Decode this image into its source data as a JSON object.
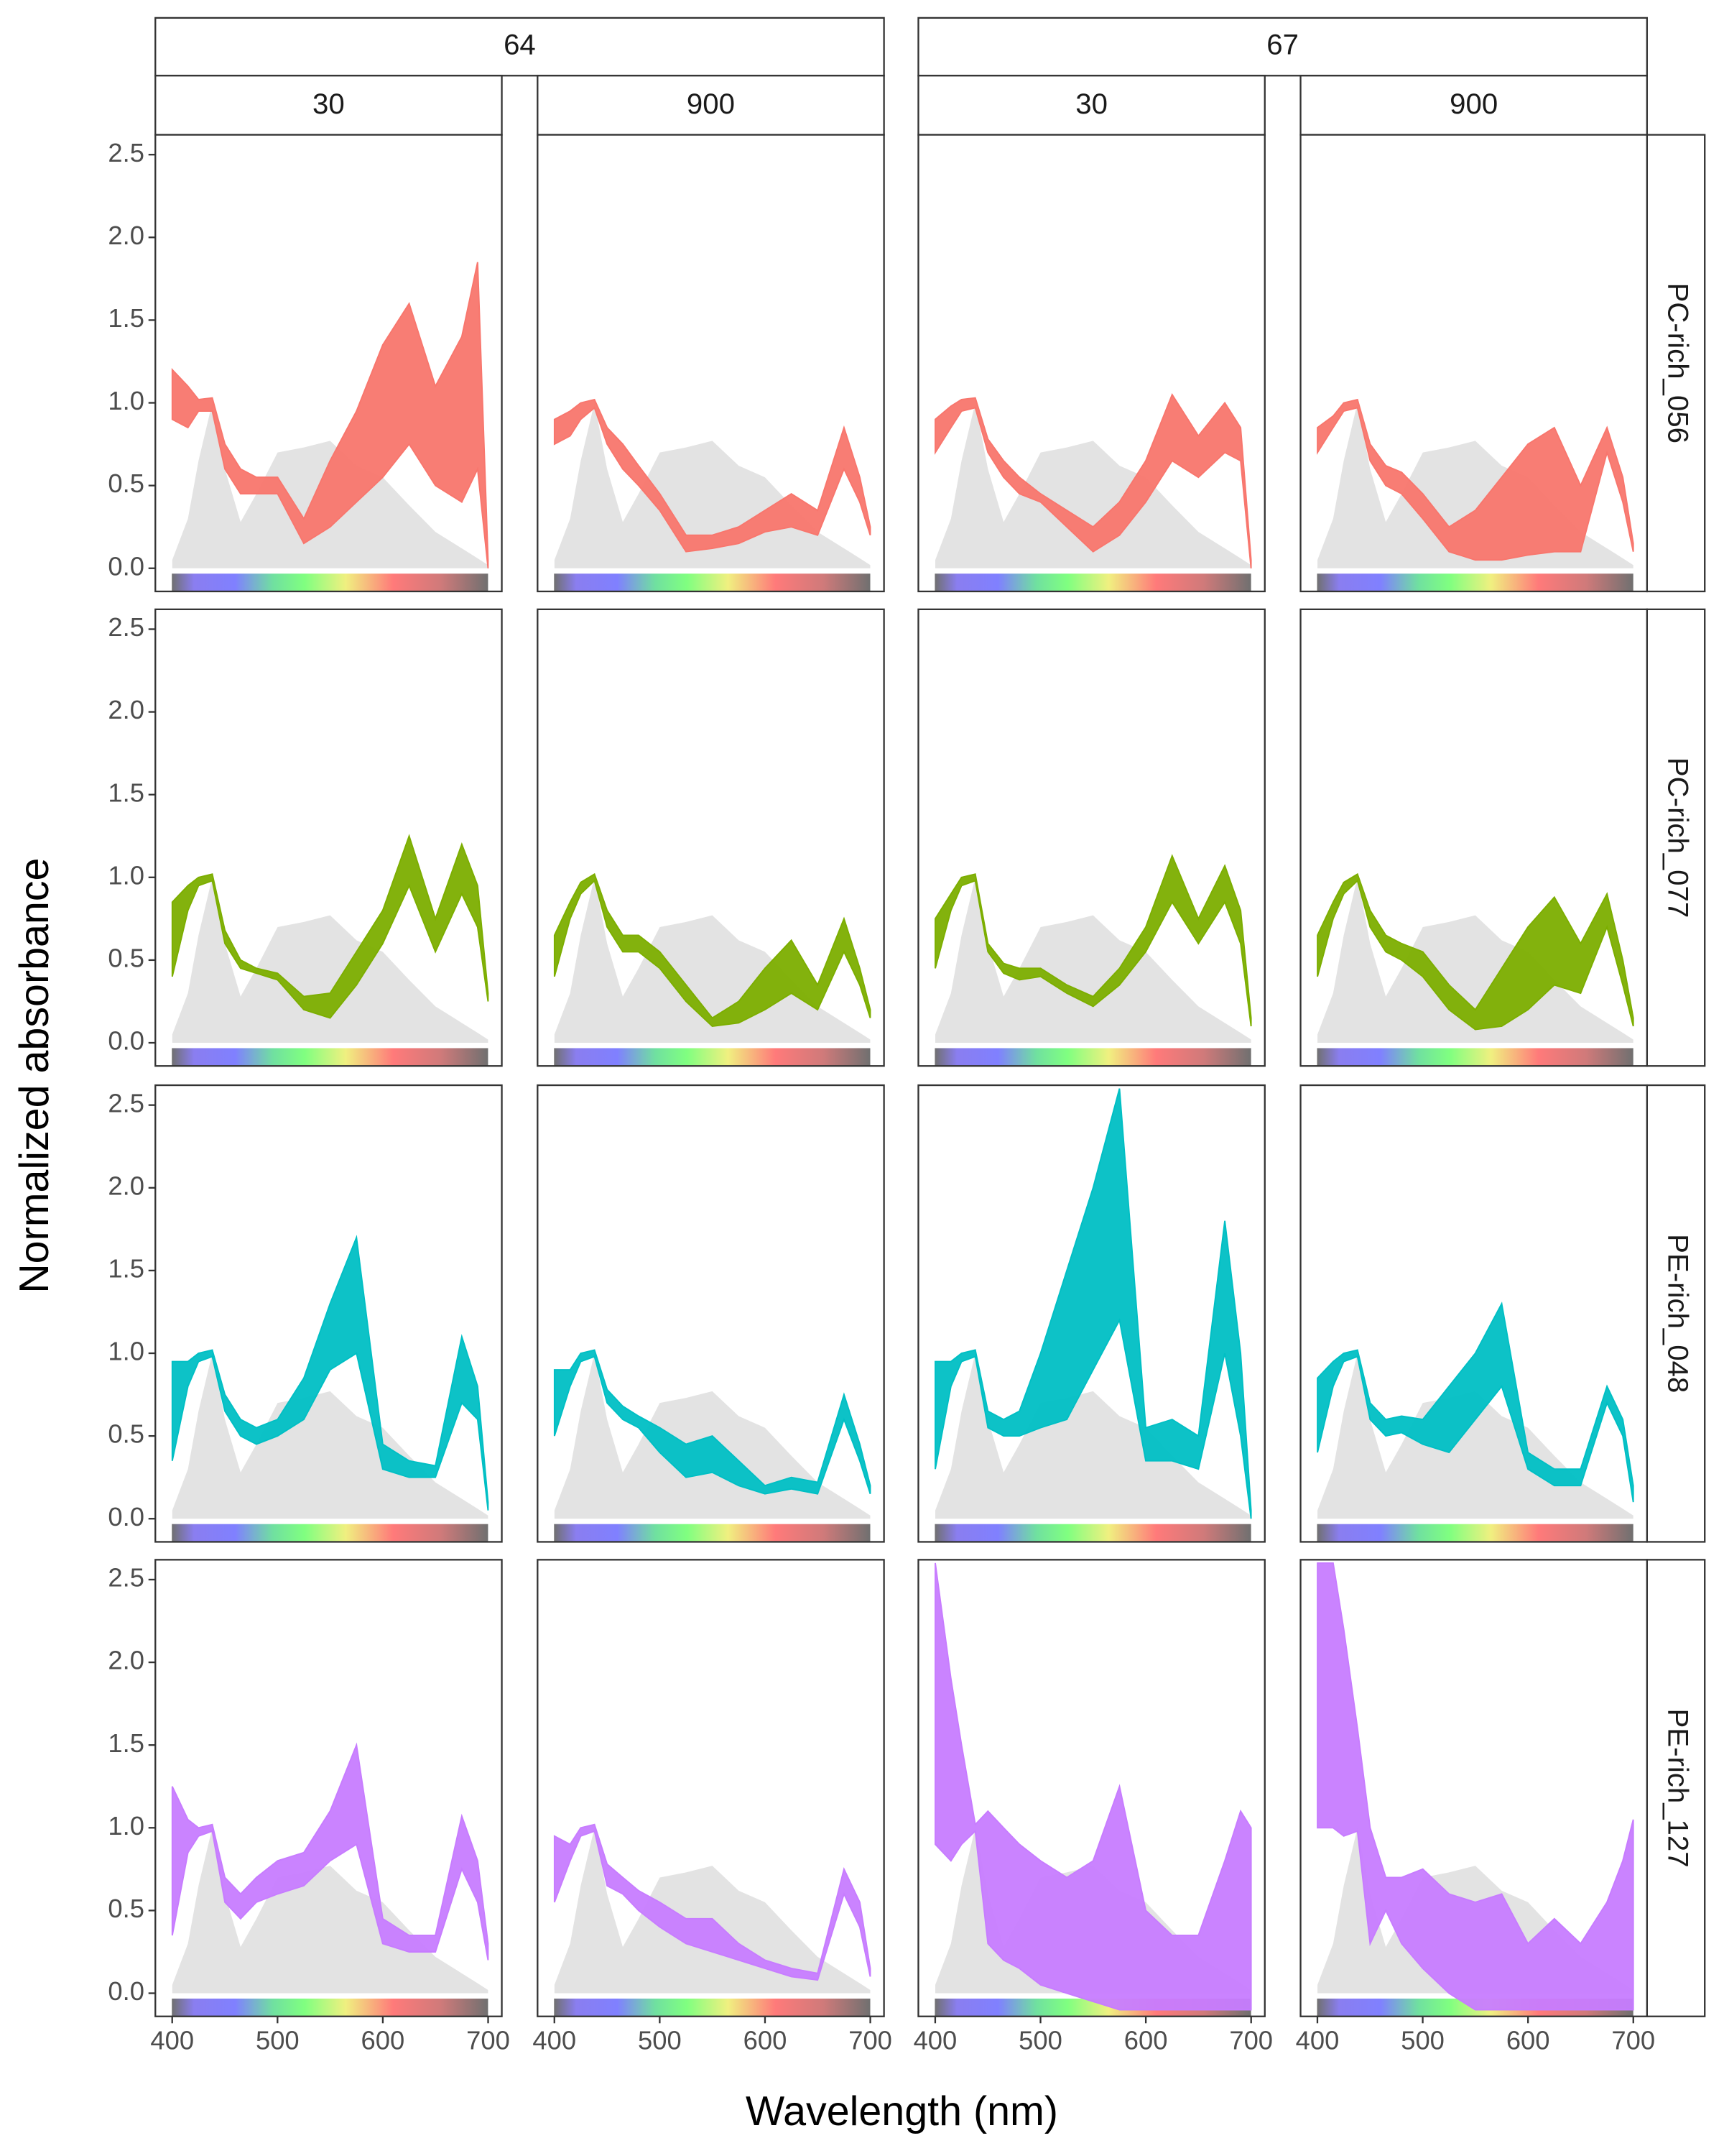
{
  "chart_data": {
    "type": "ribbon",
    "x_label": "Wavelength (nm)",
    "y_label": "Normalized absorbance",
    "xlim": [
      384,
      713
    ],
    "xticks": [
      400,
      500,
      600,
      700
    ],
    "ylim": [
      -0.14,
      2.62
    ],
    "yticks": [
      {
        "value": 0,
        "label": "0.0"
      },
      {
        "value": 0.5,
        "label": "0.5"
      },
      {
        "value": 1,
        "label": "1.0"
      },
      {
        "value": 1.5,
        "label": "1.5"
      },
      {
        "value": 2,
        "label": "2.0"
      },
      2.5
    ],
    "x": [
      400,
      415,
      425,
      438,
      450,
      465,
      480,
      500,
      525,
      550,
      575,
      600,
      625,
      650,
      675,
      690,
      700
    ],
    "reference": {
      "color": "#e3e3e3",
      "values": [
        0.05,
        0.3,
        0.65,
        1.0,
        0.6,
        0.28,
        0.45,
        0.7,
        0.73,
        0.77,
        0.62,
        0.55,
        0.38,
        0.22,
        0.12,
        0.06,
        0.02
      ]
    },
    "column_groups": [
      {
        "label": "64",
        "columns": [
          "30",
          "900"
        ]
      },
      {
        "label": "67",
        "columns": [
          "30",
          "900"
        ]
      }
    ],
    "rows": [
      {
        "label": "PC-rich_056",
        "color": "#f8766d",
        "panels": [
          {
            "lower": [
              0.9,
              0.85,
              0.95,
              0.95,
              0.6,
              0.45,
              0.45,
              0.45,
              0.15,
              0.25,
              0.4,
              0.55,
              0.75,
              0.5,
              0.4,
              0.6,
              0.0
            ],
            "upper": [
              1.2,
              1.1,
              1.02,
              1.03,
              0.75,
              0.6,
              0.55,
              0.55,
              0.3,
              0.65,
              0.95,
              1.35,
              1.6,
              1.1,
              1.4,
              1.85,
              0.05
            ]
          },
          {
            "lower": [
              0.75,
              0.8,
              0.9,
              0.97,
              0.75,
              0.6,
              0.5,
              0.35,
              0.1,
              0.12,
              0.15,
              0.22,
              0.25,
              0.2,
              0.6,
              0.4,
              0.2
            ],
            "upper": [
              0.9,
              0.95,
              1.0,
              1.02,
              0.85,
              0.75,
              0.62,
              0.45,
              0.2,
              0.2,
              0.25,
              0.35,
              0.45,
              0.35,
              0.85,
              0.55,
              0.25
            ]
          },
          {
            "lower": [
              0.7,
              0.85,
              0.95,
              0.97,
              0.7,
              0.55,
              0.45,
              0.4,
              0.25,
              0.1,
              0.2,
              0.4,
              0.65,
              0.55,
              0.7,
              0.65,
              0.0
            ],
            "upper": [
              0.9,
              0.98,
              1.02,
              1.03,
              0.78,
              0.65,
              0.55,
              0.45,
              0.35,
              0.25,
              0.4,
              0.65,
              1.05,
              0.8,
              1.0,
              0.85,
              0.05
            ]
          },
          {
            "lower": [
              0.7,
              0.85,
              0.95,
              0.97,
              0.65,
              0.5,
              0.45,
              0.3,
              0.1,
              0.05,
              0.05,
              0.08,
              0.1,
              0.1,
              0.7,
              0.4,
              0.1
            ],
            "upper": [
              0.85,
              0.92,
              1.0,
              1.02,
              0.75,
              0.62,
              0.58,
              0.45,
              0.25,
              0.35,
              0.55,
              0.75,
              0.85,
              0.5,
              0.85,
              0.55,
              0.15
            ]
          }
        ]
      },
      {
        "label": "PC-rich_077",
        "color": "#7cae00",
        "panels": [
          {
            "lower": [
              0.4,
              0.8,
              0.95,
              0.98,
              0.6,
              0.45,
              0.42,
              0.38,
              0.2,
              0.15,
              0.35,
              0.6,
              0.95,
              0.55,
              0.9,
              0.7,
              0.25
            ],
            "upper": [
              0.85,
              0.95,
              1.0,
              1.02,
              0.68,
              0.5,
              0.45,
              0.42,
              0.28,
              0.3,
              0.55,
              0.8,
              1.25,
              0.75,
              1.2,
              0.95,
              0.3
            ]
          },
          {
            "lower": [
              0.4,
              0.75,
              0.9,
              0.98,
              0.7,
              0.55,
              0.55,
              0.45,
              0.25,
              0.1,
              0.12,
              0.2,
              0.3,
              0.2,
              0.55,
              0.35,
              0.15
            ],
            "upper": [
              0.65,
              0.85,
              0.97,
              1.02,
              0.8,
              0.65,
              0.65,
              0.55,
              0.35,
              0.15,
              0.25,
              0.45,
              0.62,
              0.35,
              0.75,
              0.45,
              0.2
            ]
          },
          {
            "lower": [
              0.45,
              0.8,
              0.95,
              0.98,
              0.55,
              0.42,
              0.38,
              0.4,
              0.3,
              0.22,
              0.35,
              0.55,
              0.85,
              0.6,
              0.85,
              0.6,
              0.1
            ],
            "upper": [
              0.75,
              0.9,
              1.0,
              1.02,
              0.6,
              0.48,
              0.45,
              0.45,
              0.35,
              0.28,
              0.45,
              0.7,
              1.13,
              0.75,
              1.07,
              0.8,
              0.15
            ]
          },
          {
            "lower": [
              0.4,
              0.75,
              0.9,
              0.98,
              0.7,
              0.55,
              0.5,
              0.4,
              0.2,
              0.08,
              0.1,
              0.2,
              0.35,
              0.3,
              0.7,
              0.35,
              0.1
            ],
            "upper": [
              0.65,
              0.85,
              0.97,
              1.02,
              0.8,
              0.65,
              0.6,
              0.55,
              0.35,
              0.2,
              0.45,
              0.7,
              0.88,
              0.6,
              0.9,
              0.5,
              0.15
            ]
          }
        ]
      },
      {
        "label": "PE-rich_048",
        "color": "#00bfc4",
        "panels": [
          {
            "lower": [
              0.35,
              0.8,
              0.95,
              0.98,
              0.65,
              0.5,
              0.45,
              0.5,
              0.6,
              0.9,
              1.0,
              0.3,
              0.25,
              0.25,
              0.7,
              0.6,
              0.05
            ],
            "upper": [
              0.95,
              0.95,
              1.0,
              1.02,
              0.75,
              0.6,
              0.55,
              0.6,
              0.85,
              1.3,
              1.7,
              0.45,
              0.35,
              0.32,
              1.1,
              0.8,
              0.1
            ]
          },
          {
            "lower": [
              0.5,
              0.8,
              0.95,
              0.98,
              0.7,
              0.6,
              0.55,
              0.4,
              0.25,
              0.28,
              0.2,
              0.15,
              0.18,
              0.15,
              0.6,
              0.35,
              0.15
            ],
            "upper": [
              0.9,
              0.9,
              1.0,
              1.02,
              0.78,
              0.68,
              0.62,
              0.55,
              0.45,
              0.5,
              0.35,
              0.2,
              0.25,
              0.22,
              0.75,
              0.45,
              0.2
            ]
          },
          {
            "lower": [
              0.3,
              0.8,
              0.95,
              0.98,
              0.55,
              0.5,
              0.5,
              0.55,
              0.6,
              0.9,
              1.2,
              0.35,
              0.35,
              0.3,
              1.0,
              0.5,
              0.0
            ],
            "upper": [
              0.95,
              0.95,
              1.0,
              1.02,
              0.65,
              0.6,
              0.65,
              1.0,
              1.5,
              2.0,
              2.6,
              0.55,
              0.6,
              0.5,
              1.8,
              1.0,
              0.05
            ]
          },
          {
            "lower": [
              0.4,
              0.8,
              0.95,
              0.98,
              0.6,
              0.5,
              0.52,
              0.45,
              0.4,
              0.6,
              0.8,
              0.3,
              0.2,
              0.2,
              0.7,
              0.5,
              0.1
            ],
            "upper": [
              0.85,
              0.95,
              1.0,
              1.02,
              0.7,
              0.6,
              0.62,
              0.6,
              0.8,
              1.0,
              1.3,
              0.4,
              0.3,
              0.3,
              0.8,
              0.6,
              0.2
            ]
          }
        ]
      },
      {
        "label": "PE-rich_127",
        "color": "#c77cff",
        "panels": [
          {
            "lower": [
              0.35,
              0.85,
              0.95,
              0.98,
              0.55,
              0.45,
              0.55,
              0.6,
              0.65,
              0.8,
              0.9,
              0.3,
              0.25,
              0.25,
              0.75,
              0.55,
              0.2
            ],
            "upper": [
              1.25,
              1.05,
              1.0,
              1.02,
              0.7,
              0.6,
              0.7,
              0.8,
              0.85,
              1.1,
              1.5,
              0.45,
              0.35,
              0.35,
              1.07,
              0.8,
              0.3
            ]
          },
          {
            "lower": [
              0.55,
              0.8,
              0.95,
              0.98,
              0.65,
              0.6,
              0.5,
              0.4,
              0.3,
              0.25,
              0.2,
              0.15,
              0.1,
              0.08,
              0.6,
              0.4,
              0.1
            ],
            "upper": [
              0.95,
              0.9,
              1.0,
              1.02,
              0.78,
              0.7,
              0.62,
              0.55,
              0.45,
              0.45,
              0.3,
              0.2,
              0.15,
              0.12,
              0.75,
              0.55,
              0.15
            ]
          },
          {
            "lower": [
              0.9,
              0.8,
              0.9,
              0.98,
              0.3,
              0.2,
              0.15,
              0.05,
              0.0,
              -0.05,
              -0.1,
              -0.1,
              -0.1,
              -0.1,
              -0.1,
              -0.1,
              -0.1
            ],
            "upper": [
              2.6,
              1.9,
              1.5,
              1.02,
              1.1,
              1.0,
              0.9,
              0.8,
              0.7,
              0.8,
              1.25,
              0.5,
              0.35,
              0.35,
              0.8,
              1.1,
              1.0
            ]
          },
          {
            "lower": [
              1.0,
              1.0,
              0.95,
              0.98,
              0.3,
              0.5,
              0.3,
              0.15,
              0.0,
              -0.1,
              -0.1,
              -0.1,
              -0.1,
              -0.1,
              -0.1,
              -0.1,
              -0.1
            ],
            "upper": [
              2.6,
              2.6,
              2.2,
              1.6,
              1.0,
              0.7,
              0.7,
              0.75,
              0.6,
              0.55,
              0.6,
              0.3,
              0.45,
              0.3,
              0.55,
              0.8,
              1.05
            ]
          }
        ]
      }
    ]
  }
}
